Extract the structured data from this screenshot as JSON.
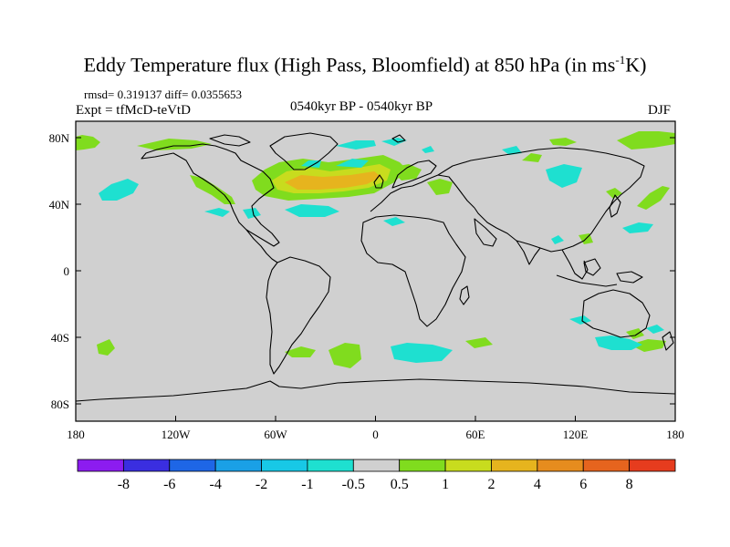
{
  "header": {
    "title_main": "Eddy Temperature flux (High Pass, Bloomfield) at 850 hPa (in ms",
    "title_sup": "-1",
    "title_tail": "K)",
    "stats": "rmsd= 0.319137 diff= 0.0355653",
    "expt": "Expt = tfMcD-teVtD",
    "period": "0540kyr BP - 0540kyr BP",
    "season": "DJF"
  },
  "axes": {
    "x_ticks": [
      "180",
      "120W",
      "60W",
      "0",
      "60E",
      "120E",
      "180"
    ],
    "y_ticks": [
      "80N",
      "40N",
      "0",
      "40S",
      "80S"
    ]
  },
  "colorbar": {
    "colors": [
      "#8c1cf0",
      "#3a2ee0",
      "#1e66e6",
      "#1aa0e6",
      "#18c8e6",
      "#1ee0d0",
      "#d0d0d0",
      "#80dc1e",
      "#c8dc1e",
      "#e6b41e",
      "#e68c1e",
      "#e6641e",
      "#e63c1e"
    ],
    "labels": [
      "-8",
      "-6",
      "-4",
      "-2",
      "-1",
      "-0.5",
      "0.5",
      "1",
      "2",
      "4",
      "6",
      "8"
    ]
  },
  "map_colors": {
    "background": "#d0d0d0",
    "green": "#80dc1e",
    "cyan": "#1ee0d0",
    "yellow": "#c8dc1e",
    "orange": "#e6b41e"
  }
}
